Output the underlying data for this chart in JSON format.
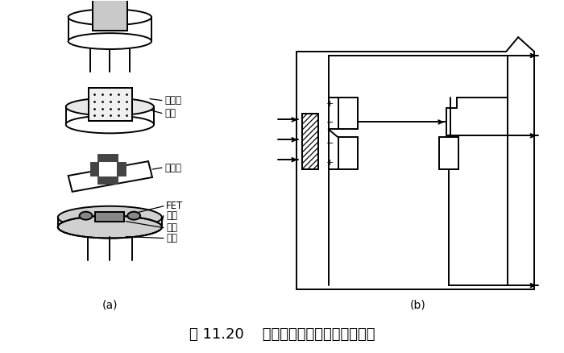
{
  "title": "图 11.20    热释电人体红外传感器的结构",
  "label_a": "(a)",
  "label_b": "(b)",
  "bg_color": "#ffffff",
  "line_color": "#000000",
  "labels": {
    "filter": "滤光片",
    "cap": "管帽",
    "sensor": "敏感元",
    "fet": "FET",
    "socket": "管座",
    "resistor": "高阻",
    "lead": "引线"
  },
  "figsize": [
    7.0,
    4.38
  ],
  "dpi": 100
}
